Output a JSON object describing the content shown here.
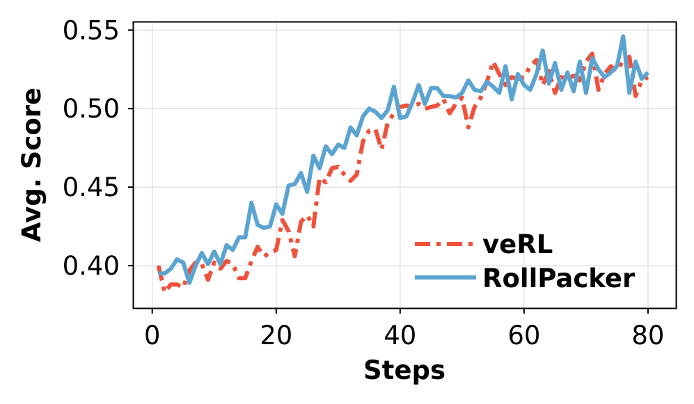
{
  "chart_data": {
    "type": "line",
    "title": "",
    "xlabel": "Steps",
    "ylabel": "Avg. Score",
    "xlim": [
      -3,
      84.5
    ],
    "ylim": [
      0.373,
      0.555
    ],
    "xticks": [
      "0",
      "20",
      "40",
      "60",
      "80"
    ],
    "yticks": [
      "0.40",
      "0.45",
      "0.50",
      "0.55"
    ],
    "grid": true,
    "legend_position": "lower-right",
    "x": [
      1,
      2,
      3,
      4,
      5,
      6,
      7,
      8,
      9,
      10,
      11,
      12,
      13,
      14,
      15,
      16,
      17,
      18,
      19,
      20,
      21,
      22,
      23,
      24,
      25,
      26,
      27,
      28,
      29,
      30,
      31,
      32,
      33,
      34,
      35,
      36,
      37,
      38,
      39,
      40,
      41,
      42,
      43,
      44,
      45,
      46,
      47,
      48,
      49,
      50,
      51,
      52,
      53,
      54,
      55,
      56,
      57,
      58,
      59,
      60,
      61,
      62,
      63,
      64,
      65,
      66,
      67,
      68,
      69,
      70,
      71,
      72,
      73,
      74,
      75,
      76,
      77,
      78,
      79,
      80
    ],
    "series": [
      {
        "name": "veRL",
        "color": "#f0513b",
        "style": "dashdot",
        "values": [
          0.4,
          0.383,
          0.388,
          0.388,
          0.386,
          0.397,
          0.402,
          0.401,
          0.391,
          0.402,
          0.398,
          0.403,
          0.401,
          0.392,
          0.392,
          0.403,
          0.412,
          0.406,
          0.408,
          0.41,
          0.429,
          0.422,
          0.406,
          0.428,
          0.432,
          0.425,
          0.456,
          0.453,
          0.462,
          0.463,
          0.458,
          0.454,
          0.458,
          0.479,
          0.486,
          0.487,
          0.474,
          0.491,
          0.497,
          0.501,
          0.502,
          0.501,
          0.503,
          0.5,
          0.501,
          0.502,
          0.506,
          0.497,
          0.503,
          0.507,
          0.488,
          0.501,
          0.507,
          0.517,
          0.53,
          0.522,
          0.515,
          0.52,
          0.519,
          0.52,
          0.527,
          0.531,
          0.515,
          0.524,
          0.51,
          0.52,
          0.519,
          0.521,
          0.518,
          0.53,
          0.535,
          0.512,
          0.522,
          0.527,
          0.524,
          0.531,
          0.533,
          0.508,
          0.518,
          0.52
        ]
      },
      {
        "name": "RollPacker",
        "color": "#5ba4d2",
        "style": "solid",
        "values": [
          0.395,
          0.395,
          0.398,
          0.404,
          0.402,
          0.389,
          0.4,
          0.408,
          0.401,
          0.409,
          0.401,
          0.413,
          0.41,
          0.418,
          0.418,
          0.44,
          0.426,
          0.424,
          0.425,
          0.439,
          0.433,
          0.451,
          0.452,
          0.459,
          0.447,
          0.47,
          0.462,
          0.476,
          0.471,
          0.477,
          0.475,
          0.488,
          0.483,
          0.495,
          0.5,
          0.498,
          0.494,
          0.499,
          0.514,
          0.494,
          0.495,
          0.504,
          0.515,
          0.503,
          0.513,
          0.513,
          0.508,
          0.508,
          0.507,
          0.51,
          0.518,
          0.512,
          0.511,
          0.517,
          0.514,
          0.51,
          0.527,
          0.506,
          0.522,
          0.515,
          0.512,
          0.522,
          0.537,
          0.516,
          0.529,
          0.512,
          0.523,
          0.511,
          0.53,
          0.51,
          0.532,
          0.525,
          0.52,
          0.523,
          0.527,
          0.546,
          0.51,
          0.53,
          0.519,
          0.523
        ]
      }
    ]
  }
}
